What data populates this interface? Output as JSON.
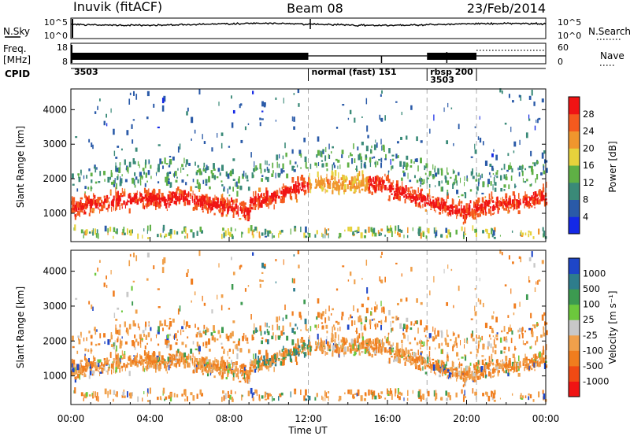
{
  "header": {
    "station": "Inuvik (fitACF)",
    "beam": "Beam 08",
    "date": "23/Feb/2014"
  },
  "nsky_panel": {
    "left_label": "N.Sky",
    "right_label": "N.Search",
    "left_ticks": [
      "10^5",
      "10^0"
    ],
    "right_ticks": [
      "10^5",
      "10^0"
    ]
  },
  "freq_panel": {
    "left_label_1": "Freq.",
    "left_label_2": "[MHz]",
    "right_label": "Nave",
    "left_ticks": [
      "18",
      "8"
    ],
    "right_ticks": [
      "60",
      "0"
    ]
  },
  "cpid_panel": {
    "label": "CPID",
    "segments": [
      {
        "start_hour": 0.0,
        "text": "3503"
      },
      {
        "start_hour": 12.0,
        "text": "normal (fast)  151"
      },
      {
        "start_hour": 18.0,
        "text": "rbsp  200",
        "text2": "3503"
      },
      {
        "start_hour": 20.5,
        "text": ""
      }
    ]
  },
  "chart_data": [
    {
      "type": "heatmap",
      "name": "power",
      "ylabel": "Slant Range [km]",
      "x_range_hours": [
        0,
        24
      ],
      "ylim": [
        180,
        4600
      ],
      "y_ticks": [
        1000,
        2000,
        3000,
        4000
      ],
      "colorbar_label": "Power [dB]",
      "colorbar_range": [
        0,
        32
      ],
      "colorbar_ticks": [
        "4",
        "8",
        "12",
        "16",
        "20",
        "24",
        "28"
      ],
      "colorbar_colors": [
        "#1428e6",
        "#2a5aa8",
        "#3a8a78",
        "#5fb045",
        "#e6d23c",
        "#f0962d",
        "#f55a1e",
        "#f01414"
      ]
    },
    {
      "type": "heatmap",
      "name": "velocity",
      "ylabel": "Slant Range [km]",
      "xlabel": "Time UT",
      "x_range_hours": [
        0,
        24
      ],
      "x_ticks": [
        "00:00",
        "04:00",
        "08:00",
        "12:00",
        "16:00",
        "20:00",
        "00:00"
      ],
      "ylim": [
        180,
        4600
      ],
      "y_ticks": [
        1000,
        2000,
        3000,
        4000
      ],
      "colorbar_label": "Velocity [m s⁻¹]",
      "colorbar_ticks": [
        "1000",
        "500",
        "100",
        "25",
        "-25",
        "-100",
        "-500",
        "-1000"
      ],
      "colorbar_colors": [
        "#1e46c8",
        "#2e7d8c",
        "#3c9a50",
        "#6cc83c",
        "#c8c8c8",
        "#f0a04b",
        "#f07d1e",
        "#f04a14",
        "#f01414"
      ]
    }
  ]
}
